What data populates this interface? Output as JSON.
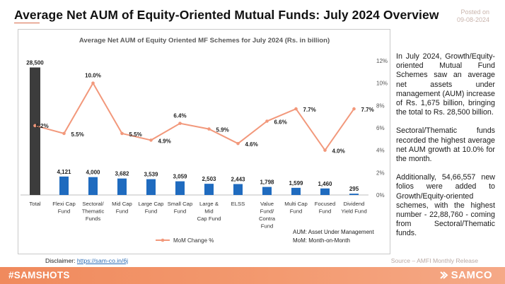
{
  "header": {
    "title": "Average Net AUM of Equity-Oriented Mutual Funds: July 2024 Overview",
    "posted_label": "Posted on",
    "posted_date": "09-08-2024"
  },
  "chart_data": {
    "type": "bar",
    "title": "Average Net AUM of Equity Oriented MF Schemes for July 2024 (Rs. in billion)",
    "categories": [
      "Total",
      "Flexi Cap Fund",
      "Sectoral/ Thematic Funds",
      "Mid Cap Fund",
      "Large Cap Fund",
      "Small Cap Fund",
      "Large & Mid Cap Fund",
      "ELSS",
      "Value Fund/ Contra Fund",
      "Multi Cap Fund",
      "Focused Fund",
      "Dividend Yield Fund"
    ],
    "category_lines": [
      [
        "Total"
      ],
      [
        "Flexi Cap",
        "Fund"
      ],
      [
        "Sectoral/",
        "Thematic",
        "Funds"
      ],
      [
        "Mid Cap",
        "Fund"
      ],
      [
        "Large Cap",
        "Fund"
      ],
      [
        "Small Cap",
        "Fund"
      ],
      [
        "Large &",
        "Mid",
        "Cap Fund"
      ],
      [
        "ELSS"
      ],
      [
        "Value",
        "Fund/",
        "Contra",
        "Fund"
      ],
      [
        "Multi Cap",
        "Fund"
      ],
      [
        "Focused",
        "Fund"
      ],
      [
        "Dividend",
        "Yield Fund"
      ]
    ],
    "series": [
      {
        "name": "Average Net AUM (Rs. in billion)",
        "type": "bar",
        "axis": "left",
        "values": [
          28500,
          4121,
          4000,
          3682,
          3539,
          3059,
          2503,
          2443,
          1798,
          1599,
          1460,
          295
        ],
        "labels": [
          "28,500",
          "4,121",
          "4,000",
          "3,682",
          "3,539",
          "3,059",
          "2,503",
          "2,443",
          "1,798",
          "1,599",
          "1,460",
          "295"
        ]
      },
      {
        "name": "MoM Change %",
        "type": "line",
        "axis": "right",
        "values": [
          6.2,
          5.5,
          10.0,
          5.5,
          4.9,
          6.4,
          5.9,
          4.6,
          6.6,
          7.7,
          4.0,
          7.7
        ],
        "labels": [
          "6.2%",
          "5.5%",
          "10.0%",
          "5.5%",
          "4.9%",
          "6.4%",
          "5.9%",
          "4.6%",
          "6.6%",
          "7.7%",
          "4.0%",
          "7.7%"
        ]
      }
    ],
    "y_left_range": [
      0,
      30000
    ],
    "y_right_range": [
      0,
      12
    ],
    "y_right_ticks": [
      "0%",
      "2%",
      "4%",
      "6%",
      "8%",
      "10%",
      "12%"
    ],
    "legend": "MoM Change %",
    "legend_position": "bottom-center",
    "notes": [
      "AUM: Asset Under Management",
      "MoM: Month-on-Month"
    ],
    "colors": {
      "total_bar": "#3c3c3c",
      "bars": "#1f6bbf",
      "line": "#f2987b",
      "right_axis_text": "#e07a5a",
      "title_text": "#5a5a5a"
    }
  },
  "side_text": {
    "p1": "In July 2024, Growth/Equity-oriented Mutual Fund Schemes saw an average net assets under management (AUM) increase of Rs. 1,675 billion, bringing the total to Rs. 28,500 billion.",
    "p2": "Sectoral/Thematic funds recorded the highest average net AUM growth at 10.0% for the month.",
    "p3": "Additionally, 54,66,557 new folios were added to Growth/Equity-oriented schemes, with the highest number - 22,88,760 - coming from Sectoral/Thematic funds."
  },
  "footer": {
    "disclaimer_label": "Disclaimer: ",
    "disclaimer_link": "https://sam-co.in/6j",
    "source": "Source – AMFI Monthly Release",
    "hashtag": "#SAMSHOTS",
    "brand": "SAMCO"
  }
}
